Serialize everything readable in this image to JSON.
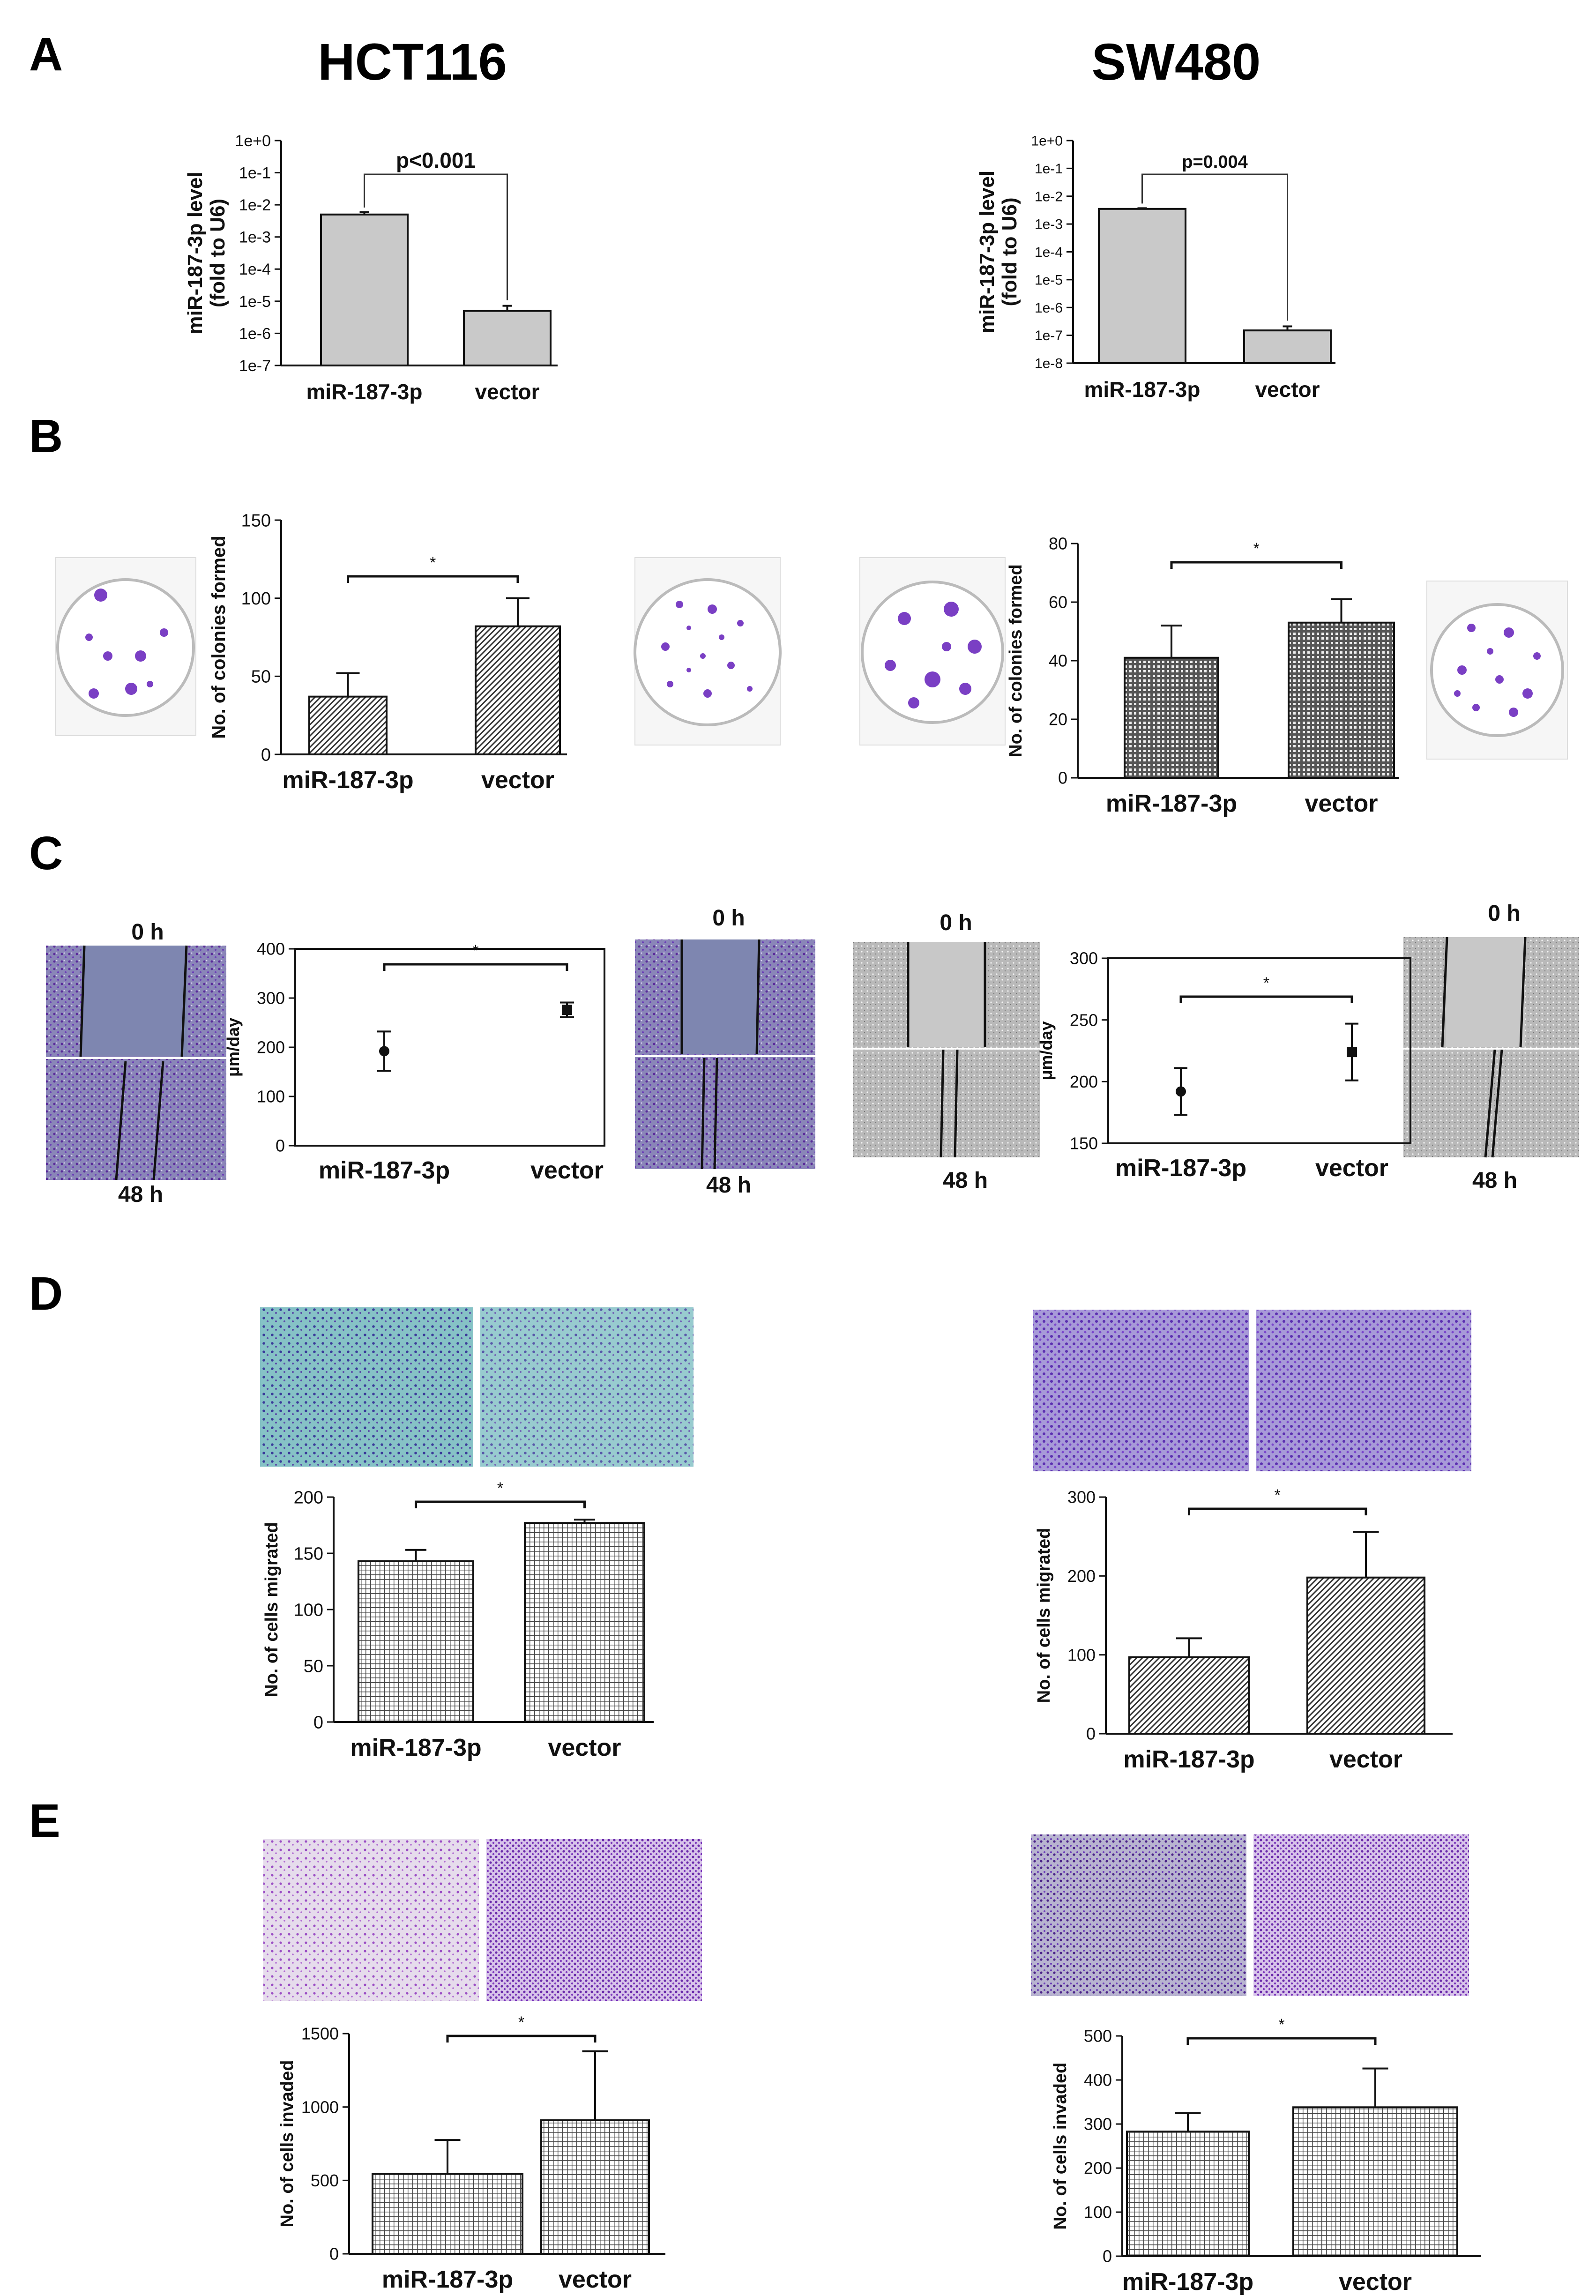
{
  "panel_letters": {
    "a": "A",
    "b": "B",
    "c": "C",
    "d": "D",
    "e": "E"
  },
  "cell_lines": {
    "left": "HCT116",
    "right": "SW480"
  },
  "microscopy_labels": {
    "t0": "0 h",
    "t48": "48 h"
  },
  "colors": {
    "gray_bar": "#c9c9c9",
    "stain_purple": "#7a3fc4",
    "wound_blue": "#7e86b0",
    "transwell_teal": "#8ec8c8",
    "black": "#111111"
  },
  "chart_data": [
    {
      "id": "a_hct",
      "type": "bar",
      "scale": "log",
      "categories": [
        "miR-187-3p",
        "vector"
      ],
      "values": [
        0.005,
        5e-06
      ],
      "errors": [
        0.0009,
        2.2e-06
      ],
      "ylabel": "miR-187-3p level\n(fold to U6)",
      "yticks": [
        "1e-7",
        "1e-6",
        "1e-5",
        "1e-4",
        "1e-3",
        "1e-2",
        "1e-1",
        "1e+0"
      ],
      "ylim_exp": [
        -7,
        0
      ],
      "sig": "p<0.001"
    },
    {
      "id": "a_sw",
      "type": "bar",
      "scale": "log",
      "categories": [
        "miR-187-3p",
        "vector"
      ],
      "values": [
        0.0035,
        1.5e-07
      ],
      "errors": [
        0.0002,
        6e-08
      ],
      "ylabel": "miR-187-3p level\n(fold to U6)",
      "yticks": [
        "1e-8",
        "1e-7",
        "1e-6",
        "1e-5",
        "1e-4",
        "1e-3",
        "1e-2",
        "1e-1",
        "1e+0"
      ],
      "ylim_exp": [
        -8,
        0
      ],
      "sig": "p=0.004"
    },
    {
      "id": "b_hct",
      "type": "bar",
      "categories": [
        "miR-187-3p",
        "vector"
      ],
      "values": [
        37,
        82
      ],
      "errors": [
        15,
        18
      ],
      "ylabel": "No. of colonies formed",
      "ylim": [
        0,
        150
      ],
      "ticks": [
        0,
        50,
        100,
        150
      ],
      "sig": "*"
    },
    {
      "id": "b_sw",
      "type": "bar",
      "categories": [
        "miR-187-3p",
        "vector"
      ],
      "values": [
        41,
        53
      ],
      "errors": [
        11,
        8
      ],
      "ylabel": "No. of colonies formed",
      "ylim": [
        0,
        80
      ],
      "ticks": [
        0,
        20,
        40,
        60,
        80
      ],
      "sig": "*"
    },
    {
      "id": "c_hct",
      "type": "scatter",
      "categories": [
        "miR-187-3p",
        "vector"
      ],
      "values": [
        192,
        276
      ],
      "errors": [
        40,
        15
      ],
      "ylabel": "μm/day",
      "ylim": [
        0,
        400
      ],
      "ticks": [
        0,
        100,
        200,
        300,
        400
      ],
      "sig": "*"
    },
    {
      "id": "c_sw",
      "type": "scatter",
      "categories": [
        "miR-187-3p",
        "vector"
      ],
      "values": [
        192,
        224
      ],
      "errors": [
        19,
        23
      ],
      "ylabel": "μm/day",
      "ylim": [
        150,
        300
      ],
      "ticks": [
        150,
        200,
        250,
        300
      ],
      "sig": "*"
    },
    {
      "id": "d_hct",
      "type": "bar",
      "categories": [
        "miR-187-3p",
        "vector"
      ],
      "values": [
        143,
        177
      ],
      "errors": [
        10,
        3
      ],
      "ylabel": "No. of cells migrated",
      "ylim": [
        0,
        200
      ],
      "ticks": [
        0,
        50,
        100,
        150,
        200
      ],
      "sig": "*"
    },
    {
      "id": "d_sw",
      "type": "bar",
      "categories": [
        "miR-187-3p",
        "vector"
      ],
      "values": [
        97,
        198
      ],
      "errors": [
        24,
        58
      ],
      "ylabel": "No. of cells migrated",
      "ylim": [
        0,
        300
      ],
      "ticks": [
        0,
        100,
        200,
        300
      ],
      "sig": "*"
    },
    {
      "id": "e_hct",
      "type": "bar",
      "categories": [
        "miR-187-3p",
        "vector"
      ],
      "values": [
        545,
        910
      ],
      "errors": [
        230,
        470
      ],
      "ylabel": "No. of cells invaded",
      "ylim": [
        0,
        1500
      ],
      "ticks": [
        0,
        500,
        1000,
        1500
      ],
      "sig": "*"
    },
    {
      "id": "e_sw",
      "type": "bar",
      "categories": [
        "miR-187-3p",
        "vector"
      ],
      "values": [
        283,
        338
      ],
      "errors": [
        42,
        88
      ],
      "ylabel": "No. of cells invaded",
      "ylim": [
        0,
        500
      ],
      "ticks": [
        0,
        100,
        200,
        300,
        400,
        500
      ],
      "sig": "*"
    }
  ]
}
